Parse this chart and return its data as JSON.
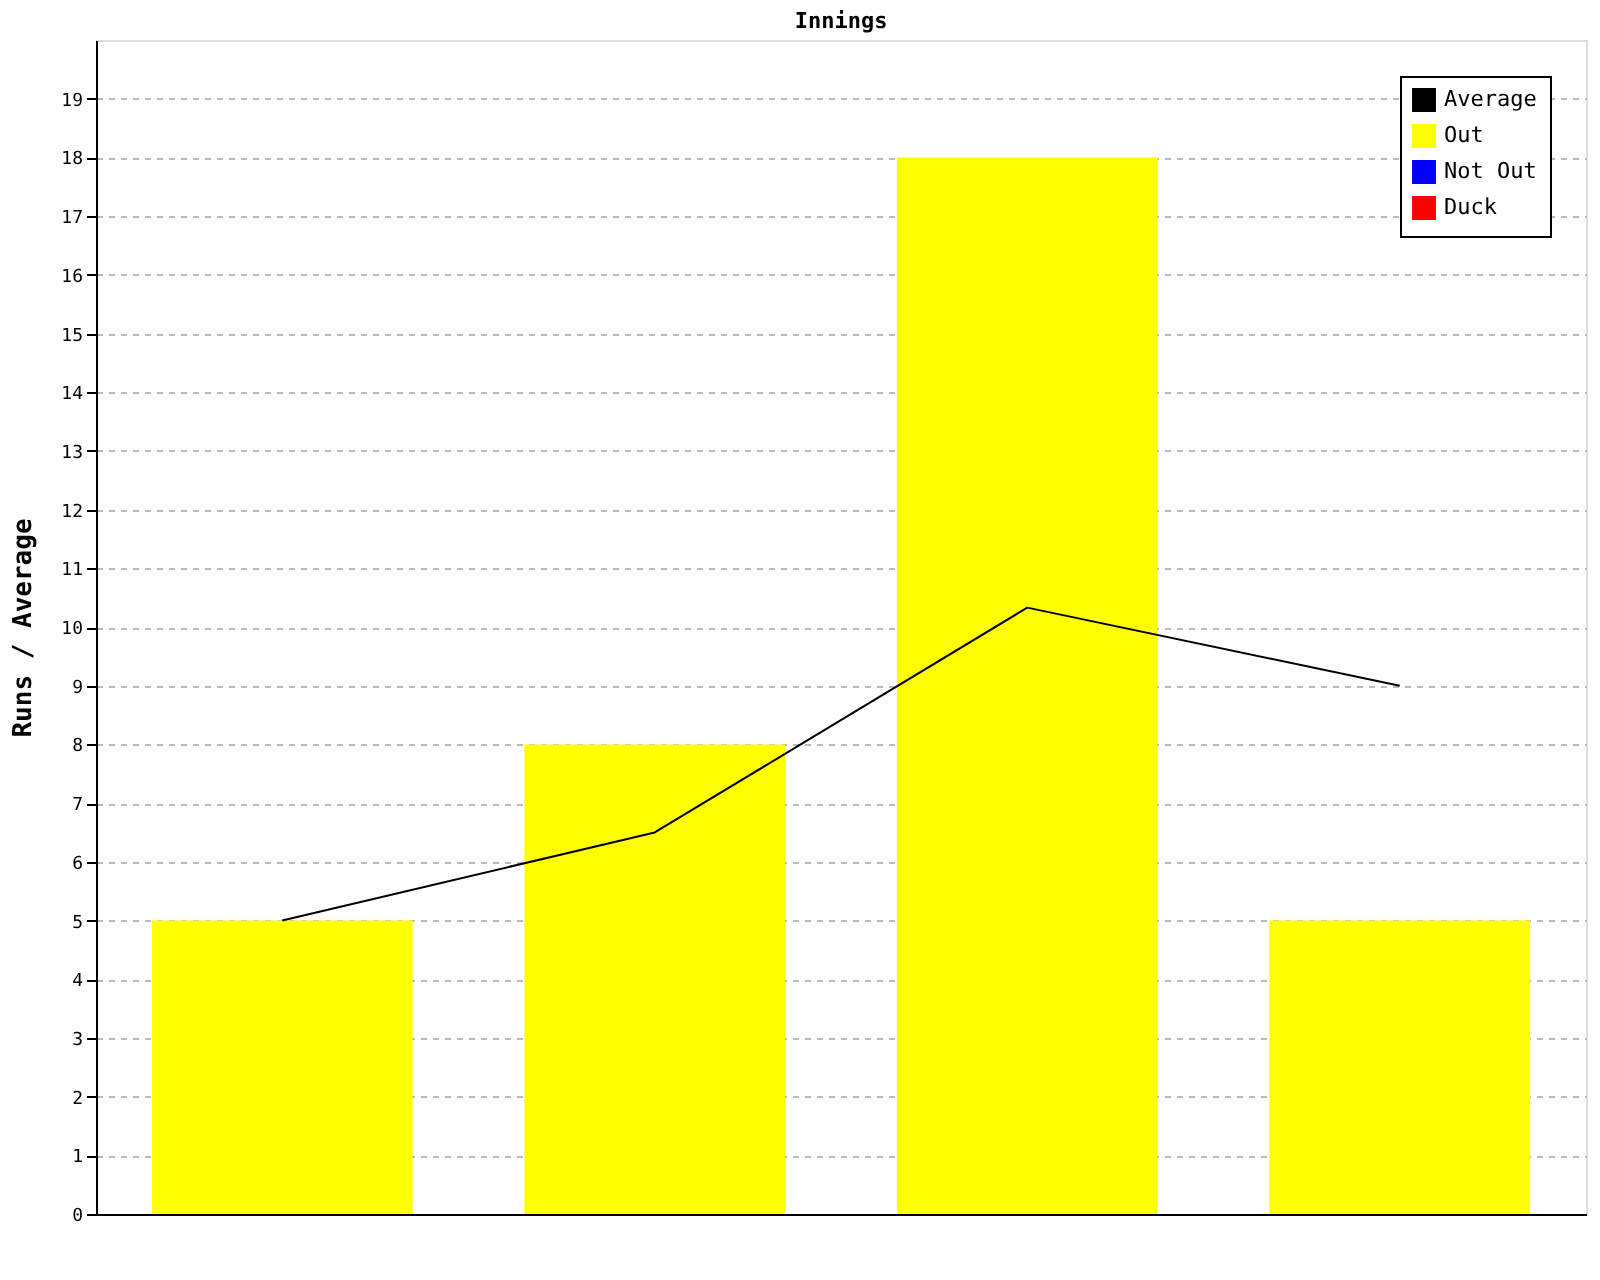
{
  "chart_data": {
    "type": "bar",
    "title": "Innings",
    "ylabel": "Runs / Average",
    "categories": [
      null,
      null,
      null,
      null
    ],
    "series": [
      {
        "name": "Average",
        "type": "line",
        "color": "#000000",
        "values": [
          5,
          6.5,
          10.33,
          9
        ]
      },
      {
        "name": "Out",
        "color": "#ffff00",
        "values": [
          5,
          8,
          18,
          5
        ]
      },
      {
        "name": "Not Out",
        "color": "#0000ff",
        "values": [
          null,
          null,
          null,
          null
        ]
      },
      {
        "name": "Duck",
        "color": "#ff0000",
        "values": [
          null,
          null,
          null,
          null
        ]
      }
    ],
    "ylim": [
      0,
      20
    ],
    "yticks": [
      0,
      1,
      2,
      3,
      4,
      5,
      6,
      7,
      8,
      9,
      10,
      11,
      12,
      13,
      14,
      15,
      16,
      17,
      18,
      19
    ],
    "grid": "y",
    "legend": "top right",
    "tick_labels": "y"
  }
}
